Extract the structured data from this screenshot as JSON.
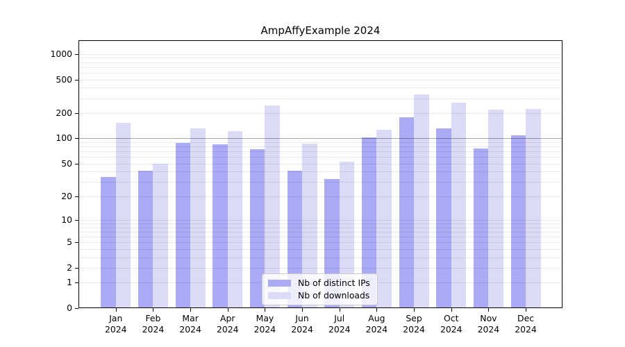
{
  "title": "AmpAffyExample 2024",
  "legend": {
    "items": [
      {
        "label": "Nb of distinct IPs",
        "color": "#aaaaf5"
      },
      {
        "label": "Nb of downloads",
        "color": "#dbdbf8"
      }
    ]
  },
  "chart_data": {
    "type": "bar",
    "title": "AmpAffyExample 2024",
    "categories": [
      "Jan 2024",
      "Feb 2024",
      "Mar 2024",
      "Apr 2024",
      "May 2024",
      "Jun 2024",
      "Jul 2024",
      "Aug 2024",
      "Sep 2024",
      "Oct 2024",
      "Nov 2024",
      "Dec 2024"
    ],
    "x_tick_month": [
      "Jan",
      "Feb",
      "Mar",
      "Apr",
      "May",
      "Jun",
      "Jul",
      "Aug",
      "Sep",
      "Oct",
      "Nov",
      "Dec"
    ],
    "x_tick_year": "2024",
    "series": [
      {
        "name": "Nb of distinct IPs",
        "color": "#aaaaf5",
        "values": [
          34,
          40,
          87,
          84,
          73,
          40,
          32,
          101,
          175,
          130,
          74,
          107
        ]
      },
      {
        "name": "Nb of downloads",
        "color": "#dbdbf8",
        "values": [
          150,
          49,
          130,
          120,
          240,
          85,
          52,
          124,
          330,
          260,
          215,
          220
        ]
      }
    ],
    "y_axis": {
      "scale": "log1p",
      "ticks": [
        0,
        1,
        2,
        5,
        10,
        20,
        50,
        100,
        200,
        500,
        1000
      ],
      "range": [
        0,
        1400
      ],
      "emphasized_gridline": 100
    },
    "grid": {
      "minor_log_gridlines": true
    },
    "legend_position": "bottom-center"
  }
}
